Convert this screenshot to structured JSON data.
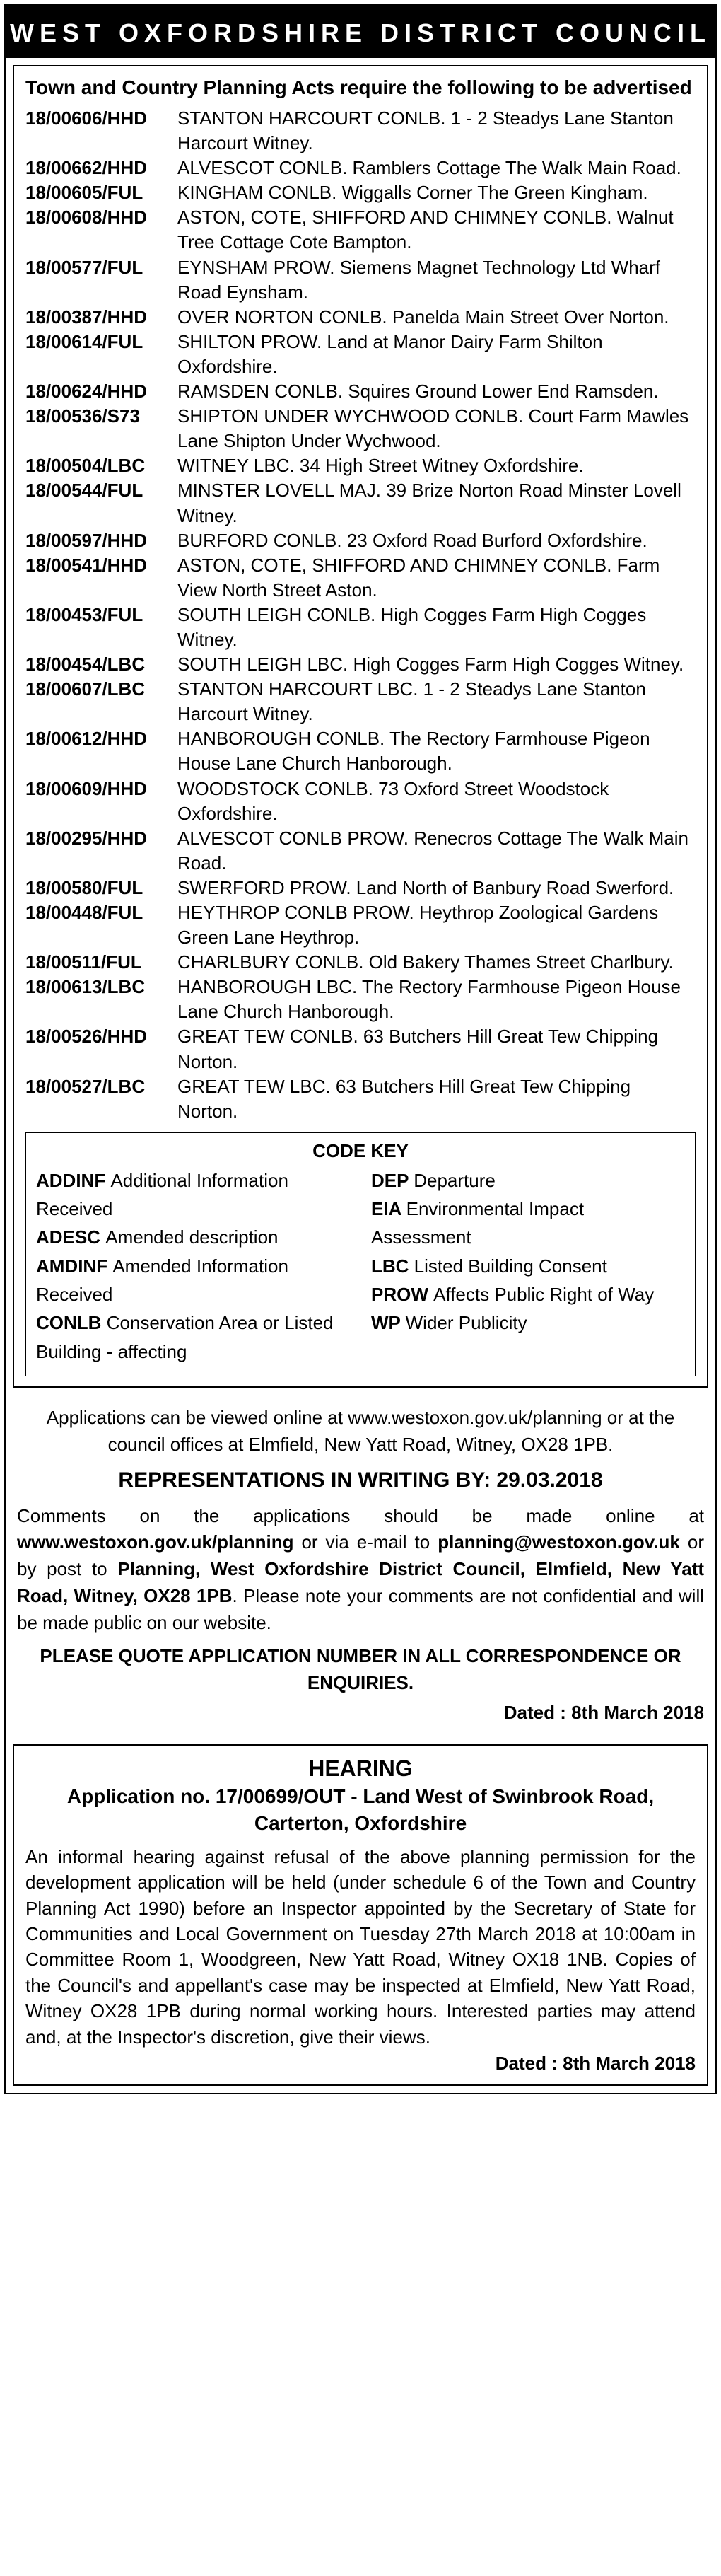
{
  "header": "WEST OXFORDSHIRE DISTRICT COUNCIL",
  "intro": "Town and Country Planning Acts require the following to be advertised",
  "apps": [
    {
      "ref": "18/00606/HHD",
      "desc": "STANTON HARCOURT CONLB.  1 - 2 Steadys Lane Stanton Harcourt Witney."
    },
    {
      "ref": "18/00662/HHD",
      "desc": "ALVESCOT CONLB. Ramblers Cottage The Walk Main Road."
    },
    {
      "ref": "18/00605/FUL",
      "desc": "KINGHAM CONLB.  Wiggalls Corner The Green Kingham."
    },
    {
      "ref": "18/00608/HHD",
      "desc": "ASTON, COTE, SHIFFORD AND CHIMNEY CONLB. Walnut Tree Cottage Cote Bampton."
    },
    {
      "ref": "18/00577/FUL",
      "desc": "EYNSHAM PROW.  Siemens Magnet Technology Ltd Wharf Road Eynsham."
    },
    {
      "ref": "18/00387/HHD",
      "desc": "OVER NORTON CONLB.  Panelda Main Street Over Norton."
    },
    {
      "ref": "18/00614/FUL",
      "desc": "SHILTON PROW.  Land at Manor Dairy Farm Shilton Oxfordshire."
    },
    {
      "ref": "18/00624/HHD",
      "desc": "RAMSDEN CONLB.  Squires Ground Lower End Ramsden."
    },
    {
      "ref": "18/00536/S73",
      "desc": "SHIPTON UNDER WYCHWOOD CONLB.  Court Farm Mawles Lane Shipton Under Wychwood."
    },
    {
      "ref": "18/00504/LBC",
      "desc": "WITNEY LBC.  34 High Street Witney Oxfordshire."
    },
    {
      "ref": "18/00544/FUL",
      "desc": "MINSTER LOVELL MAJ.  39 Brize Norton Road Minster Lovell Witney."
    },
    {
      "ref": "18/00597/HHD",
      "desc": "BURFORD CONLB.  23 Oxford Road Burford Oxfordshire."
    },
    {
      "ref": "18/00541/HHD",
      "desc": "ASTON, COTE, SHIFFORD AND CHIMNEY CONLB. Farm View North Street Aston."
    },
    {
      "ref": "18/00453/FUL",
      "desc": "SOUTH LEIGH CONLB.  High Cogges Farm High Cogges Witney."
    },
    {
      "ref": "18/00454/LBC",
      "desc": "SOUTH LEIGH LBC.  High Cogges Farm High Cogges Witney."
    },
    {
      "ref": "18/00607/LBC",
      "desc": "STANTON HARCOURT LBC.  1 - 2 Steadys Lane Stanton Harcourt Witney."
    },
    {
      "ref": "18/00612/HHD",
      "desc": "HANBOROUGH CONLB.  The Rectory Farmhouse Pigeon House Lane Church Hanborough."
    },
    {
      "ref": "18/00609/HHD",
      "desc": "WOODSTOCK CONLB.  73 Oxford Street Woodstock Oxfordshire."
    },
    {
      "ref": "18/00295/HHD",
      "desc": "ALVESCOT CONLB PROW.  Renecros Cottage The Walk Main Road."
    },
    {
      "ref": "18/00580/FUL",
      "desc": "SWERFORD PROW.  Land North of Banbury Road Swerford."
    },
    {
      "ref": "18/00448/FUL",
      "desc": "HEYTHROP CONLB PROW.  Heythrop Zoological Gardens Green Lane Heythrop."
    },
    {
      "ref": "18/00511/FUL",
      "desc": "CHARLBURY CONLB.  Old Bakery Thames Street Charlbury."
    },
    {
      "ref": "18/00613/LBC",
      "desc": "HANBOROUGH LBC.  The Rectory Farmhouse Pigeon House Lane Church Hanborough."
    },
    {
      "ref": "18/00526/HHD",
      "desc": "GREAT TEW CONLB.  63 Butchers Hill Great Tew Chipping Norton."
    },
    {
      "ref": "18/00527/LBC",
      "desc": "GREAT TEW LBC.  63 Butchers Hill Great Tew Chipping Norton."
    }
  ],
  "code_key": {
    "title": "CODE KEY",
    "left": [
      {
        "code": "ADDINF",
        "text": "Additional Information Received"
      },
      {
        "code": "ADESC",
        "text": "Amended description"
      },
      {
        "code": "AMDINF",
        "text": "Amended Information Received"
      },
      {
        "code": "CONLB",
        "text": "Conservation Area or Listed Building - affecting"
      }
    ],
    "right": [
      {
        "code": "DEP",
        "text": "Departure"
      },
      {
        "code": "EIA",
        "text": "Environmental Impact Assessment"
      },
      {
        "code": "LBC",
        "text": "Listed Building Consent"
      },
      {
        "code": "PROW",
        "text": "Affects Public Right of Way"
      },
      {
        "code": "WP",
        "text": "Wider Publicity"
      }
    ]
  },
  "footer": {
    "view": "Applications can be viewed online at www.westoxon.gov.uk/planning or at the council offices at Elmfield, New Yatt Road, Witney, OX28 1PB.",
    "rep_by": "REPRESENTATIONS IN WRITING BY: 29.03.2018",
    "comments_pre": "Comments on the applications should be made online at ",
    "comments_url": "www.westoxon.gov.uk/planning",
    "comments_mid1": " or via e-mail to ",
    "comments_email": "planning@westoxon.gov.uk",
    "comments_mid2": " or by post to ",
    "comments_post_bold": "Planning, West Oxfordshire District Council, Elmfield, New Yatt Road, Witney, OX28 1PB",
    "comments_tail": ".  Please note your comments are not confidential and will be made public on our website.",
    "quote": "PLEASE QUOTE APPLICATION NUMBER IN ALL CORRESPONDENCE OR ENQUIRIES.",
    "dated": "Dated : 8th March 2018"
  },
  "hearing": {
    "title": "HEARING",
    "sub": "Application no. 17/00699/OUT - Land West of Swinbrook Road, Carterton, Oxfordshire",
    "body": "An informal hearing against refusal of the above planning permission for the development application will be held (under schedule 6 of the Town and Country Planning Act 1990) before an Inspector appointed by the Secretary of State for Communities and Local Government on Tuesday 27th March 2018 at 10:00am in Committee Room 1, Woodgreen, New Yatt Road, Witney OX18 1NB. Copies of the Council's and appellant's case may be inspected at Elmfield, New Yatt Road, Witney OX28 1PB during normal working hours. Interested parties may attend and, at the Inspector's discretion, give their views.",
    "dated": "Dated : 8th March 2018"
  }
}
